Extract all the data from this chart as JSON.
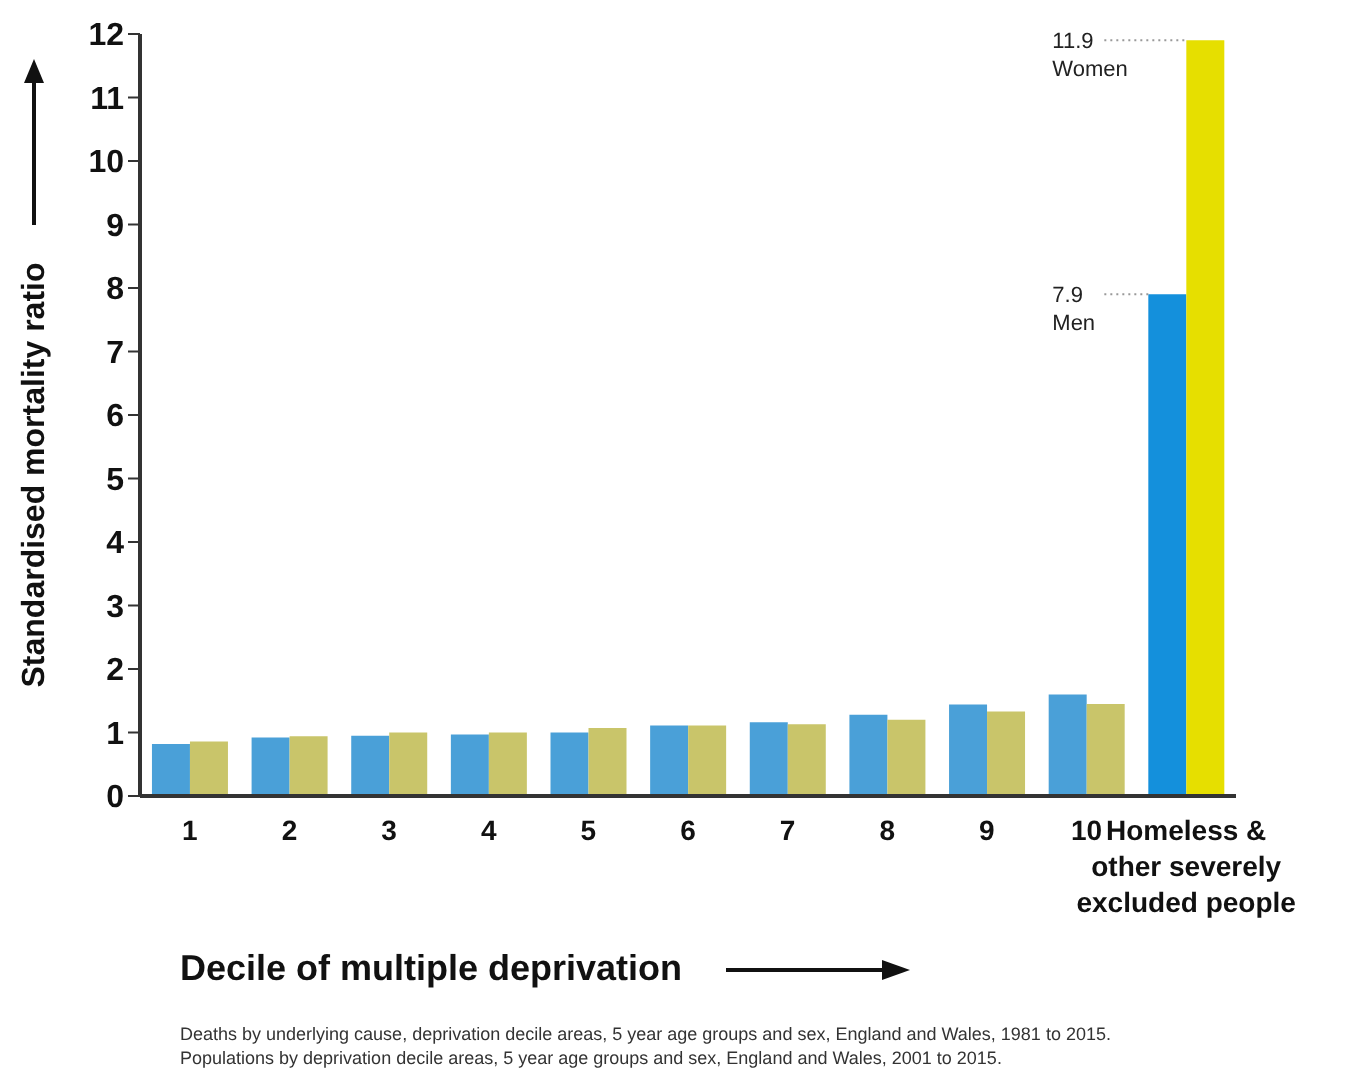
{
  "chart_data": {
    "type": "bar",
    "xlabel": "Decile of multiple deprivation",
    "ylabel": "Standardised mortality ratio",
    "categories": [
      "1",
      "2",
      "3",
      "4",
      "5",
      "6",
      "7",
      "8",
      "9",
      "10",
      "Homeless & other severely excluded people"
    ],
    "series": [
      {
        "name": "Men",
        "colors": [
          "#4aa0d8",
          "#4aa0d8",
          "#4aa0d8",
          "#4aa0d8",
          "#4aa0d8",
          "#4aa0d8",
          "#4aa0d8",
          "#4aa0d8",
          "#4aa0d8",
          "#4aa0d8",
          "#1490dc"
        ],
        "values": [
          0.82,
          0.92,
          0.95,
          0.97,
          1.0,
          1.11,
          1.16,
          1.28,
          1.44,
          1.6,
          7.9
        ],
        "value_labels": [
          null,
          null,
          null,
          null,
          null,
          null,
          null,
          null,
          null,
          null,
          "7.9"
        ]
      },
      {
        "name": "Women",
        "colors": [
          "#c9c56a",
          "#c9c56a",
          "#c9c56a",
          "#c9c56a",
          "#c9c56a",
          "#c9c56a",
          "#c9c56a",
          "#c9c56a",
          "#c9c56a",
          "#c9c56a",
          "#e6df00"
        ],
        "values": [
          0.86,
          0.94,
          1.0,
          1.0,
          1.07,
          1.11,
          1.13,
          1.2,
          1.33,
          1.45,
          11.9
        ],
        "value_labels": [
          null,
          null,
          null,
          null,
          null,
          null,
          null,
          null,
          null,
          null,
          "11.9"
        ]
      }
    ],
    "ylim": [
      0,
      12
    ],
    "yticks": [
      0,
      1,
      2,
      3,
      4,
      5,
      6,
      7,
      8,
      9,
      10,
      11,
      12
    ],
    "grid": false,
    "legend": false,
    "annotations": [
      "Deaths by underlying cause, deprivation decile areas, 5 year age groups and sex, England and Wales, 1981 to 2015.",
      "Populations by deprivation decile areas, 5 year age groups and sex, England and Wales, 2001 to 2015."
    ]
  }
}
